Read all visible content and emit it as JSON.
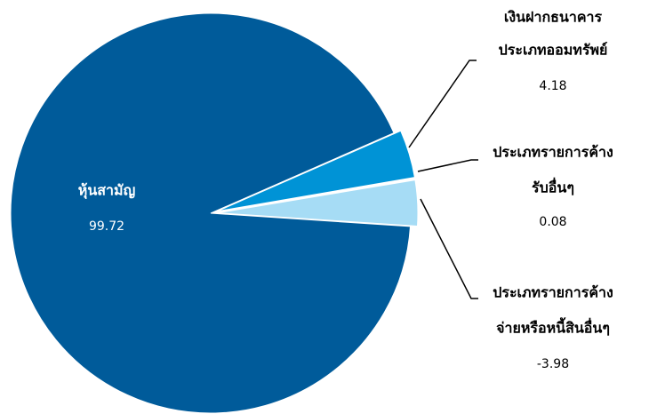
{
  "chart_data": {
    "type": "pie",
    "categories": [
      [
        "หุ้นสามัญ"
      ],
      [
        "เงินฝากธนาคาร",
        "ประเภทออมทรัพย์"
      ],
      [
        "ประเภทรายการค้าง",
        "รับอื่นๆ"
      ],
      [
        "ประเภทรายการค้าง",
        "จ่ายหรือหนี้สินอื่นๆ"
      ]
    ],
    "values": [
      99.72,
      4.18,
      0.08,
      -3.98
    ],
    "colors": [
      "#005b9a",
      "#0093d6",
      "#d9f0fb",
      "#a6dcf5"
    ]
  }
}
